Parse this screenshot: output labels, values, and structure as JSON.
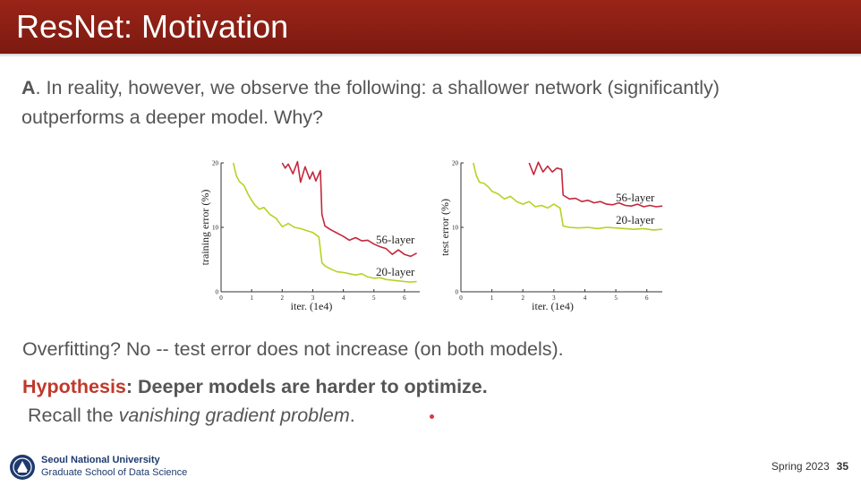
{
  "slide": {
    "title": "ResNet: Motivation",
    "para_lead": "A",
    "para_rest": ". In reality, however, we observe the following: a shallower network (significantly) outperforms a deeper model. Why?",
    "overfit": "Overfitting? No -- test error does not increase (on both models).",
    "hyp_word": "Hypothesis",
    "hyp_rest": ": Deeper models are harder to optimize.",
    "recall_pre": "Recall the ",
    "recall_em": "vanishing gradient problem",
    "recall_post": "."
  },
  "footer": {
    "university": "Seoul National University",
    "school": "Graduate School of Data Science",
    "term": "Spring 2023",
    "page": "35"
  },
  "colors": {
    "title_bg": "#8b1e14",
    "hypothesis": "#c0392b",
    "deep": "#c4283c",
    "shallow": "#b5d324"
  },
  "chart_data": [
    {
      "type": "line",
      "xlabel": "iter. (1e4)",
      "ylabel": "training error (%)",
      "xlim": [
        0,
        6.5
      ],
      "ylim": [
        0,
        20
      ],
      "xticks": [
        "0",
        "1",
        "2",
        "3",
        "4",
        "5",
        "6"
      ],
      "yticks": [
        "0",
        "10",
        "20"
      ],
      "series": [
        {
          "name": "56-layer",
          "x": [
            2.0,
            2.1,
            2.2,
            2.35,
            2.5,
            2.6,
            2.75,
            2.9,
            3.0,
            3.1,
            3.25,
            3.3,
            3.4,
            3.6,
            3.8,
            4.0,
            4.2,
            4.4,
            4.6,
            4.8,
            5.0,
            5.2,
            5.4,
            5.6,
            5.8,
            6.0,
            6.2,
            6.4
          ],
          "y": [
            20.0,
            19.2,
            19.8,
            18.3,
            20.2,
            17.0,
            19.4,
            17.5,
            18.6,
            17.2,
            18.8,
            12.0,
            10.2,
            9.6,
            9.1,
            8.6,
            8.0,
            8.4,
            7.9,
            8.0,
            7.4,
            7.0,
            6.7,
            5.8,
            6.5,
            5.8,
            5.5,
            6.0
          ]
        },
        {
          "name": "20-layer",
          "x": [
            0.4,
            0.5,
            0.6,
            0.75,
            0.9,
            1.0,
            1.1,
            1.25,
            1.4,
            1.6,
            1.8,
            2.0,
            2.2,
            2.4,
            2.6,
            2.8,
            3.0,
            3.2,
            3.3,
            3.4,
            3.6,
            3.8,
            4.0,
            4.2,
            4.4,
            4.6,
            4.8,
            5.0,
            5.2,
            5.4,
            5.6,
            5.8,
            6.0,
            6.2,
            6.4
          ],
          "y": [
            20.0,
            18.0,
            17.1,
            16.5,
            15.0,
            14.2,
            13.5,
            12.8,
            13.1,
            12.0,
            11.4,
            10.1,
            10.6,
            10.0,
            9.8,
            9.5,
            9.2,
            8.5,
            4.5,
            4.0,
            3.5,
            3.1,
            3.0,
            2.8,
            2.6,
            2.8,
            2.3,
            2.1,
            2.2,
            1.9,
            1.8,
            1.7,
            1.6,
            1.5,
            1.6
          ]
        }
      ]
    },
    {
      "type": "line",
      "xlabel": "iter. (1e4)",
      "ylabel": "test error (%)",
      "xlim": [
        0,
        6.5
      ],
      "ylim": [
        0,
        20
      ],
      "xticks": [
        "0",
        "1",
        "2",
        "3",
        "4",
        "5",
        "6"
      ],
      "yticks": [
        "0",
        "10",
        "20"
      ],
      "series": [
        {
          "name": "56-layer",
          "x": [
            2.2,
            2.35,
            2.5,
            2.65,
            2.8,
            2.95,
            3.1,
            3.25,
            3.3,
            3.5,
            3.7,
            3.9,
            4.1,
            4.3,
            4.5,
            4.7,
            4.9,
            5.1,
            5.3,
            5.5,
            5.7,
            5.9,
            6.1,
            6.3,
            6.5
          ],
          "y": [
            20.0,
            18.2,
            20.1,
            18.6,
            19.5,
            18.6,
            19.2,
            19.0,
            15.0,
            14.4,
            14.5,
            14.0,
            14.2,
            13.8,
            14.0,
            13.6,
            13.5,
            13.8,
            13.4,
            13.3,
            13.6,
            13.2,
            13.4,
            13.2,
            13.3
          ]
        },
        {
          "name": "20-layer",
          "x": [
            0.4,
            0.5,
            0.6,
            0.75,
            0.9,
            1.0,
            1.2,
            1.4,
            1.6,
            1.8,
            2.0,
            2.2,
            2.4,
            2.6,
            2.8,
            3.0,
            3.2,
            3.3,
            3.5,
            3.8,
            4.1,
            4.4,
            4.7,
            5.0,
            5.3,
            5.6,
            5.9,
            6.2,
            6.5
          ],
          "y": [
            20.0,
            18.0,
            17.0,
            16.8,
            16.2,
            15.6,
            15.2,
            14.4,
            14.8,
            14.0,
            13.6,
            14.0,
            13.2,
            13.4,
            13.0,
            13.6,
            13.0,
            10.2,
            10.0,
            9.9,
            10.0,
            9.8,
            10.0,
            9.9,
            9.8,
            9.7,
            9.8,
            9.6,
            9.7
          ]
        }
      ]
    }
  ]
}
